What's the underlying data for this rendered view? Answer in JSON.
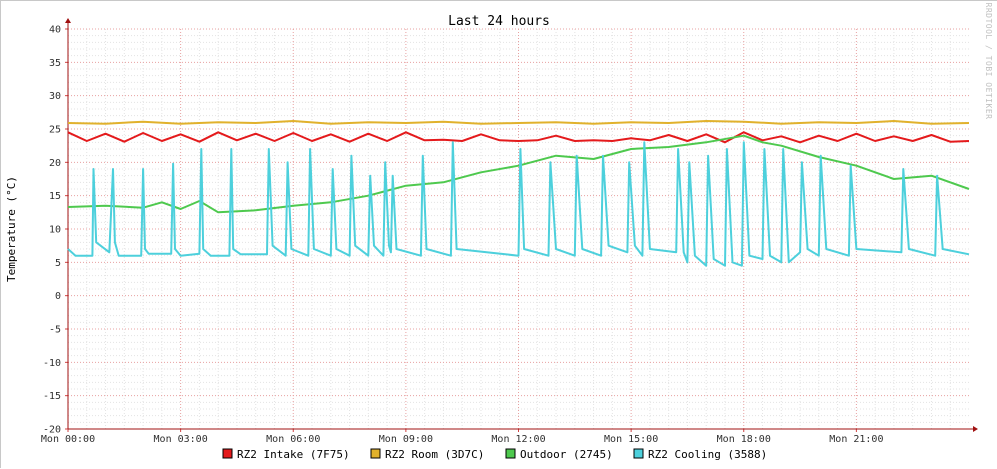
{
  "chart_data": {
    "type": "line",
    "title": "Last 24 hours",
    "ylabel": "Temperature (°C)",
    "xlabel": "",
    "watermark": "RRDTOOL / TOBI OETIKER",
    "ylim": [
      -20,
      40
    ],
    "yticks": [
      -20,
      -15,
      -10,
      -5,
      0,
      5,
      10,
      15,
      20,
      25,
      30,
      35,
      40
    ],
    "xlim": [
      0,
      24
    ],
    "xticks": [
      {
        "hour": 0,
        "label": "Mon 00:00"
      },
      {
        "hour": 3,
        "label": "Mon 03:00"
      },
      {
        "hour": 6,
        "label": "Mon 06:00"
      },
      {
        "hour": 9,
        "label": "Mon 09:00"
      },
      {
        "hour": 12,
        "label": "Mon 12:00"
      },
      {
        "hour": 15,
        "label": "Mon 15:00"
      },
      {
        "hour": 18,
        "label": "Mon 18:00"
      },
      {
        "hour": 21,
        "label": "Mon 21:00"
      }
    ],
    "grid": true,
    "legend_position": "bottom",
    "series": [
      {
        "name": "RZ2 Intake (7F75)",
        "color": "#e41a1c",
        "x": [
          0,
          0.5,
          1,
          1.5,
          2,
          2.5,
          3,
          3.5,
          4,
          4.5,
          5,
          5.5,
          6,
          6.5,
          7,
          7.5,
          8,
          8.5,
          9,
          9.5,
          10,
          10.5,
          11,
          11.5,
          12,
          12.5,
          13,
          13.5,
          14,
          14.5,
          15,
          15.5,
          16,
          16.5,
          17,
          17.5,
          18,
          18.5,
          19,
          19.5,
          20,
          20.5,
          21,
          21.5,
          22,
          22.5,
          23,
          23.5,
          24
        ],
        "y": [
          24.5,
          23.2,
          24.3,
          23.1,
          24.4,
          23.2,
          24.2,
          23.1,
          24.5,
          23.3,
          24.3,
          23.2,
          24.4,
          23.2,
          24.2,
          23.1,
          24.3,
          23.2,
          24.5,
          23.3,
          23.4,
          23.2,
          24.2,
          23.3,
          23.2,
          23.3,
          24.0,
          23.2,
          23.3,
          23.2,
          23.6,
          23.3,
          24.1,
          23.2,
          24.2,
          23.0,
          24.5,
          23.3,
          23.9,
          23.0,
          24.0,
          23.2,
          24.3,
          23.2,
          23.9,
          23.2,
          24.1,
          23.1,
          23.2
        ]
      },
      {
        "name": "RZ2 Room (3D7C)",
        "color": "#e1b12c",
        "x": [
          0,
          1,
          2,
          3,
          4,
          5,
          6,
          7,
          8,
          9,
          10,
          11,
          12,
          13,
          14,
          15,
          16,
          17,
          18,
          19,
          20,
          21,
          22,
          23,
          24
        ],
        "y": [
          25.9,
          25.8,
          26.1,
          25.8,
          26.0,
          25.9,
          26.2,
          25.8,
          26.0,
          25.9,
          26.1,
          25.8,
          25.9,
          26.0,
          25.8,
          26.0,
          25.9,
          26.2,
          26.1,
          25.8,
          26.0,
          25.9,
          26.2,
          25.8,
          25.9
        ]
      },
      {
        "name": "Outdoor (2745)",
        "color": "#4ec94e",
        "x": [
          0,
          1,
          2,
          2.5,
          3,
          3.5,
          4,
          5,
          6,
          7,
          8,
          9,
          10,
          11,
          12,
          13,
          14,
          15,
          16,
          17,
          18,
          18.5,
          19,
          20,
          21,
          22,
          23,
          24
        ],
        "y": [
          13.3,
          13.5,
          13.2,
          14.0,
          13.0,
          14.2,
          12.5,
          12.8,
          13.5,
          14.0,
          15.0,
          16.5,
          17.0,
          18.5,
          19.5,
          21.0,
          20.5,
          22.0,
          22.3,
          23.0,
          24.0,
          23.0,
          22.5,
          20.8,
          19.5,
          17.5,
          18.0,
          16.0
        ]
      },
      {
        "name": "RZ2 Cooling (3588)",
        "color": "#4dd0dc",
        "x": [
          0,
          0.2,
          0.65,
          0.68,
          0.75,
          1.1,
          1.2,
          1.25,
          1.35,
          1.95,
          2.0,
          2.05,
          2.15,
          2.75,
          2.8,
          2.85,
          3.0,
          3.5,
          3.55,
          3.6,
          3.8,
          4.3,
          4.35,
          4.4,
          4.6,
          5.3,
          5.35,
          5.45,
          5.8,
          5.85,
          5.95,
          6.4,
          6.45,
          6.55,
          7.0,
          7.05,
          7.15,
          7.5,
          7.55,
          7.65,
          8.0,
          8.05,
          8.15,
          8.4,
          8.45,
          8.55,
          8.6,
          8.65,
          8.75,
          9.4,
          9.45,
          9.55,
          10.2,
          10.25,
          10.35,
          12.0,
          12.05,
          12.15,
          12.8,
          12.85,
          13.0,
          13.5,
          13.55,
          13.7,
          14.2,
          14.25,
          14.4,
          14.9,
          14.95,
          15.1,
          15.3,
          15.35,
          15.5,
          16.2,
          16.25,
          16.4,
          16.5,
          16.55,
          16.7,
          17.0,
          17.05,
          17.2,
          17.5,
          17.55,
          17.7,
          17.95,
          18.0,
          18.15,
          18.5,
          18.55,
          18.7,
          19.0,
          19.05,
          19.2,
          19.5,
          19.55,
          19.7,
          20.0,
          20.05,
          20.2,
          20.8,
          20.85,
          21.0,
          22.2,
          22.25,
          22.4,
          23.1,
          23.15,
          23.3,
          24.0
        ],
        "y": [
          7.0,
          6.0,
          6.0,
          19.0,
          8.0,
          6.5,
          19.0,
          8.0,
          6.0,
          6.0,
          19.0,
          7.0,
          6.3,
          6.3,
          19.8,
          7.0,
          6.0,
          6.3,
          22.0,
          7.0,
          6.0,
          6.0,
          22.0,
          7.0,
          6.2,
          6.2,
          22.0,
          7.5,
          6.0,
          20.0,
          7.0,
          6.0,
          22.0,
          7.0,
          6.0,
          19.0,
          7.0,
          6.0,
          21.0,
          7.5,
          6.0,
          18.0,
          7.5,
          6.0,
          20.0,
          7.5,
          6.5,
          18.0,
          7.0,
          6.0,
          21.0,
          7.0,
          6.0,
          23.0,
          7.0,
          6.0,
          22.0,
          7.0,
          6.0,
          20.0,
          7.0,
          6.0,
          21.0,
          7.0,
          6.0,
          21.0,
          7.5,
          6.5,
          20.0,
          7.5,
          6.0,
          23.0,
          7.0,
          6.5,
          22.0,
          6.5,
          5.0,
          20.0,
          6.0,
          4.5,
          21.0,
          5.5,
          4.5,
          22.0,
          5.0,
          4.5,
          23.0,
          6.0,
          5.5,
          22.0,
          6.0,
          5.0,
          22.0,
          5.0,
          6.5,
          20.0,
          7.0,
          6.0,
          21.0,
          7.0,
          6.0,
          19.5,
          7.0,
          6.5,
          19.0,
          7.0,
          6.0,
          18.0,
          7.0,
          6.2
        ]
      }
    ]
  }
}
